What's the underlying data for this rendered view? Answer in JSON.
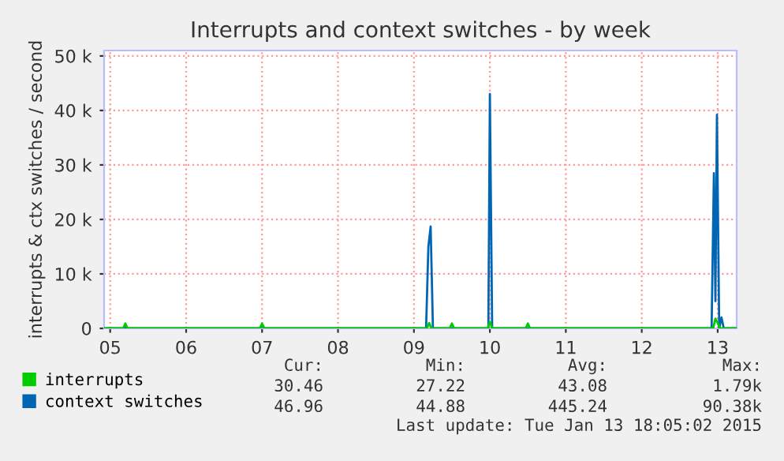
{
  "chart_data": {
    "type": "line",
    "title": "Interrupts and context switches - by week",
    "ylabel": "interrupts & ctx switches / second",
    "series": [
      {
        "name": "interrupts",
        "color": "#00cc00",
        "x": [
          4.92,
          5.17,
          5.2,
          5.23,
          6.97,
          7.0,
          7.03,
          9.17,
          9.2,
          9.23,
          9.47,
          9.5,
          9.53,
          9.97,
          10.0,
          10.03,
          10.47,
          10.5,
          10.53,
          12.94,
          12.97,
          13.0,
          13.03,
          13.25
        ],
        "values": [
          0,
          0,
          900,
          0,
          0,
          900,
          0,
          0,
          1000,
          0,
          0,
          900,
          0,
          0,
          1200,
          0,
          0,
          900,
          0,
          0,
          1790,
          1000,
          0,
          0
        ]
      },
      {
        "name": "context switches",
        "color": "#0066b3",
        "x": [
          4.92,
          5.17,
          5.2,
          5.23,
          6.97,
          7.0,
          7.03,
          9.16,
          9.19,
          9.22,
          9.25,
          9.98,
          10.0,
          10.03,
          12.92,
          12.95,
          12.97,
          12.99,
          13.02,
          13.05,
          13.08,
          13.25
        ],
        "values": [
          0,
          0,
          300,
          0,
          0,
          500,
          0,
          0,
          15000,
          18700,
          0,
          0,
          43000,
          0,
          0,
          28500,
          5000,
          39200,
          0,
          2000,
          0,
          0
        ]
      }
    ],
    "xlim": [
      4.92,
      13.25
    ],
    "xticks": [
      {
        "value": 5,
        "label": "05"
      },
      {
        "value": 6,
        "label": "06"
      },
      {
        "value": 7,
        "label": "07"
      },
      {
        "value": 8,
        "label": "08"
      },
      {
        "value": 9,
        "label": "09"
      },
      10,
      11,
      12,
      13
    ],
    "ylim": [
      0,
      51000
    ],
    "yticks": [
      0,
      {
        "value": 10000,
        "label": "10 k"
      },
      {
        "value": 20000,
        "label": "20 k"
      },
      {
        "value": 30000,
        "label": "30 k"
      },
      {
        "value": 40000,
        "label": "40 k"
      },
      {
        "value": 50000,
        "label": "50 k"
      }
    ],
    "grid": true,
    "legend": "bottom",
    "annotations": [
      "Cur:",
      "Min:",
      "Avg:",
      "Max:",
      "30.46",
      "27.22",
      "43.08",
      "1.79k",
      "46.96",
      "44.88",
      "445.24",
      "90.38k",
      "Last update: Tue Jan 13 18:05:02 2015"
    ]
  }
}
